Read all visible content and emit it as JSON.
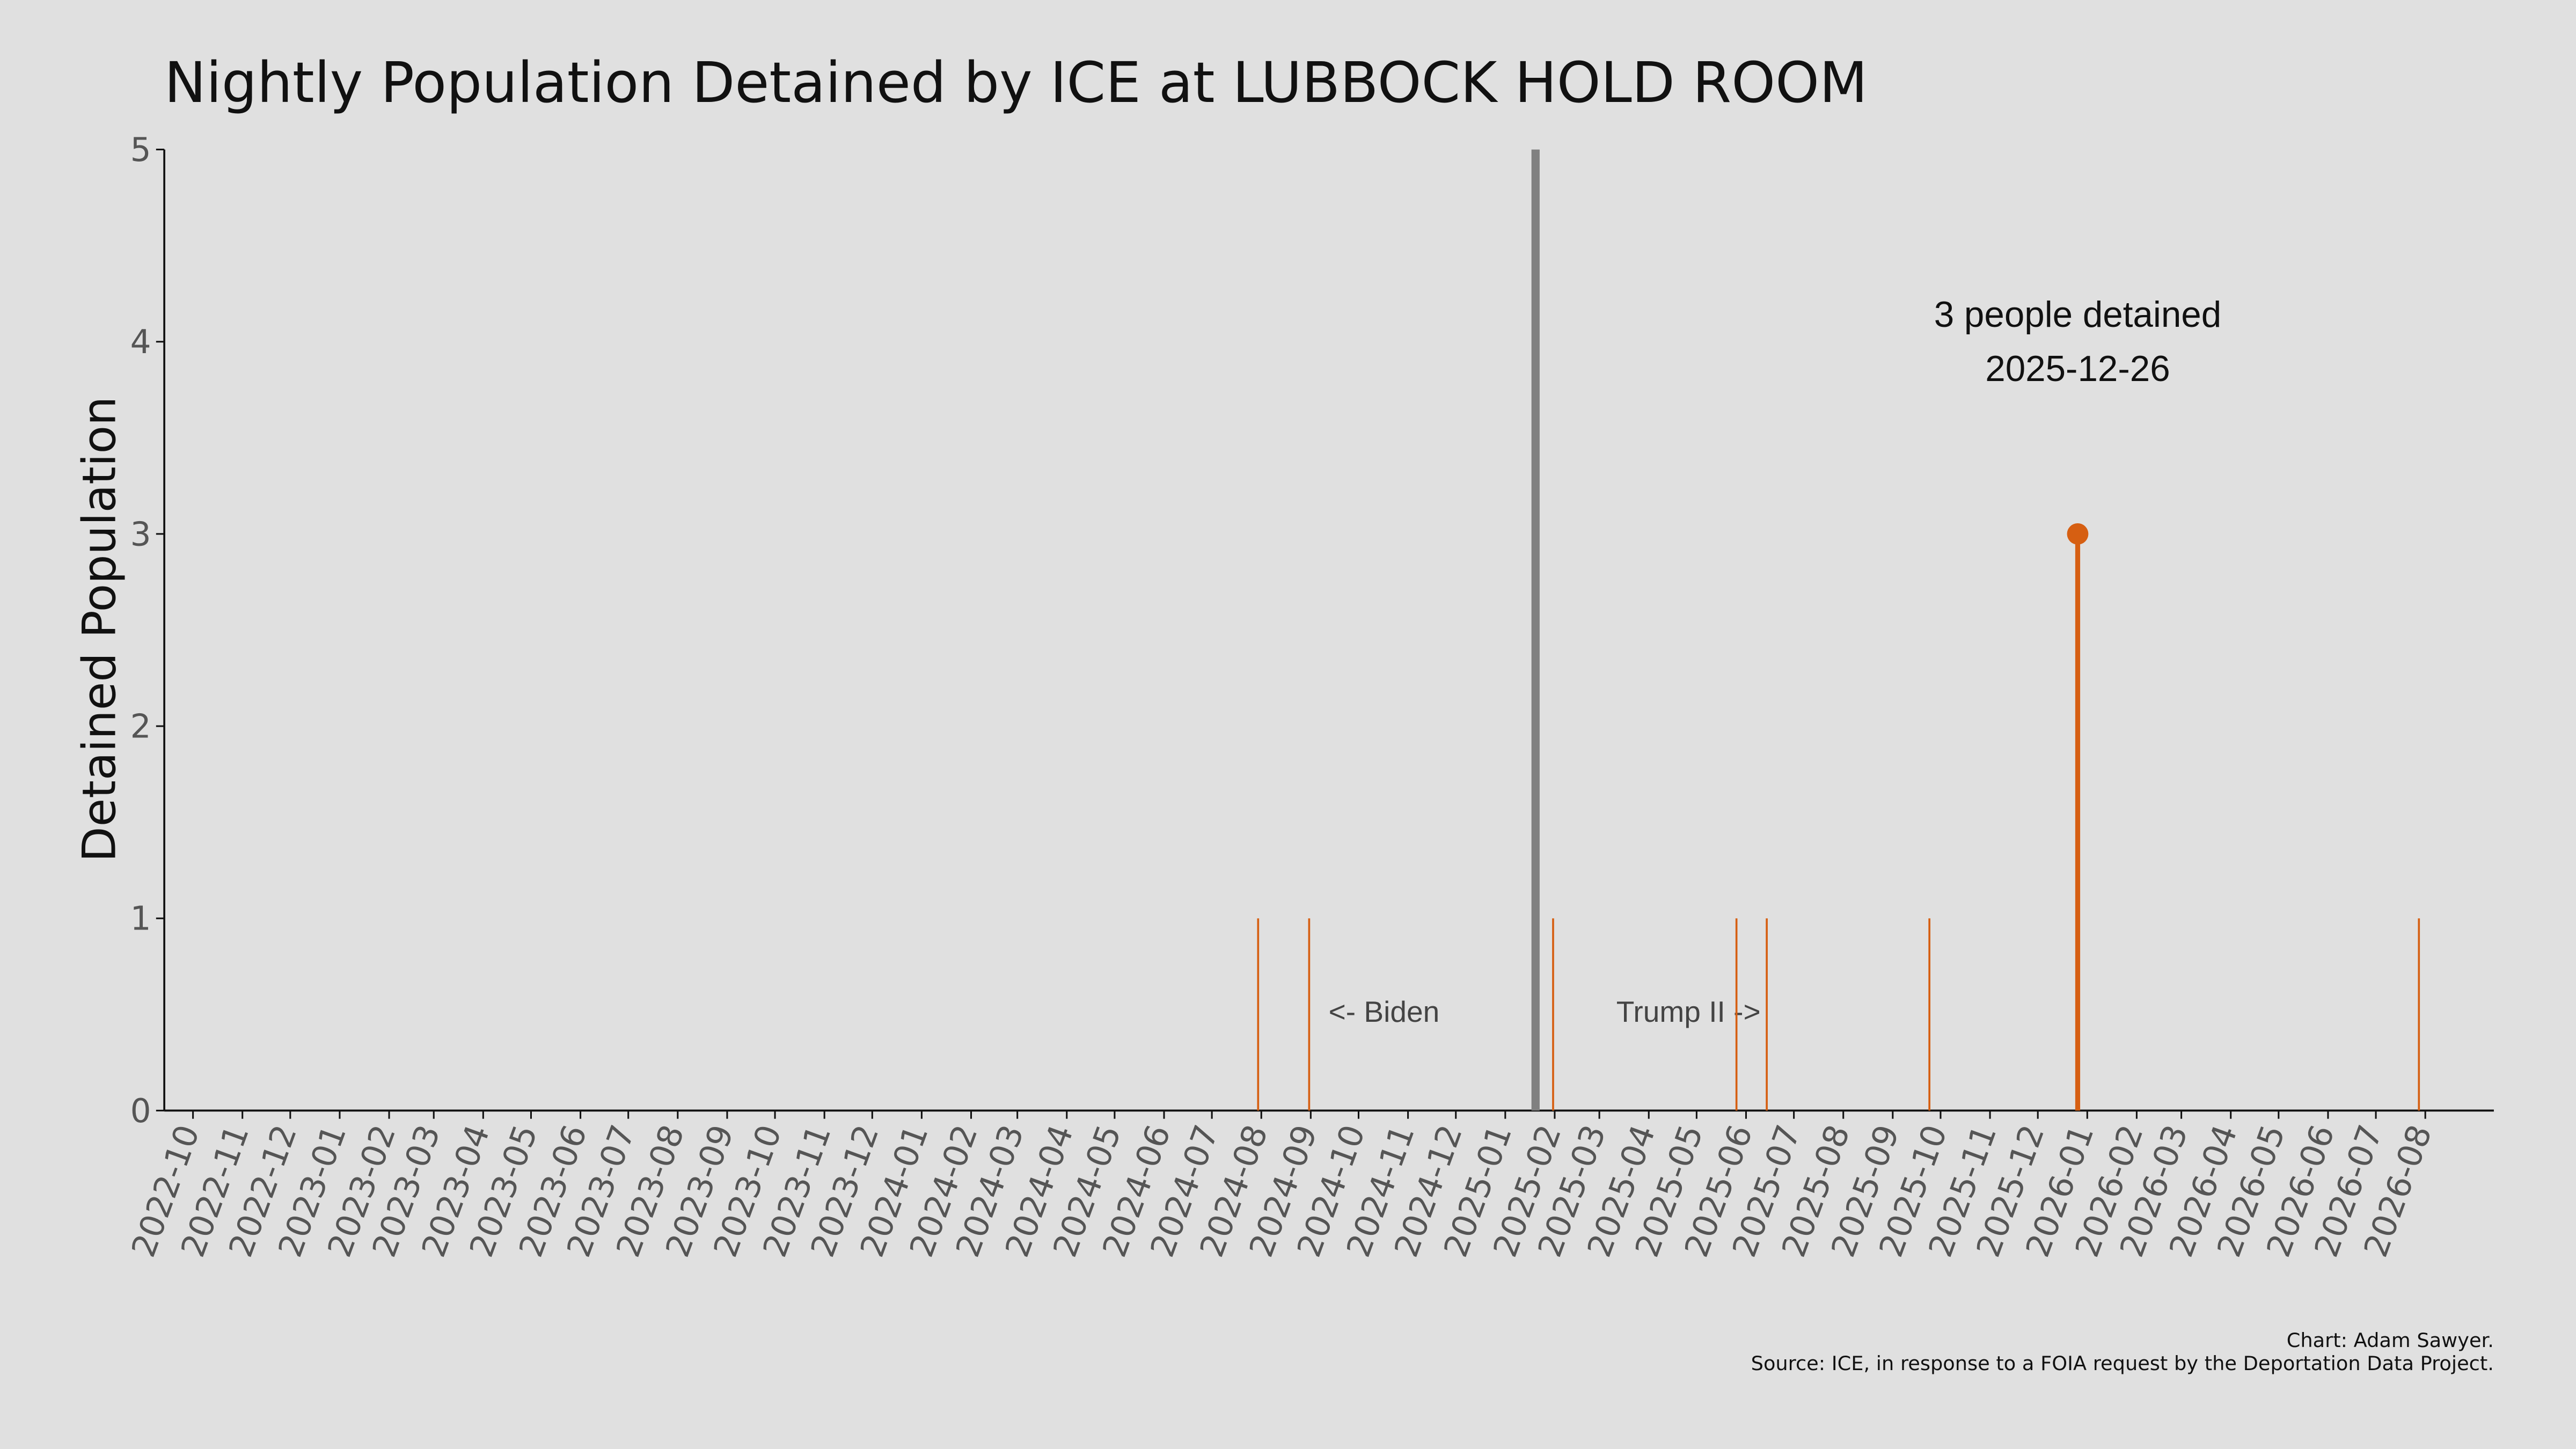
{
  "chart_data": {
    "type": "stem",
    "title": "Nightly Population Detained by ICE at LUBBOCK HOLD ROOM",
    "ylabel": "Detained Population",
    "x": [
      "2024-07-30",
      "2024-08-31",
      "2025-01-31",
      "2025-05-26",
      "2025-06-14",
      "2025-09-24",
      "2025-12-26",
      "2026-07-28"
    ],
    "values": [
      1,
      1,
      1,
      1,
      1,
      1,
      3,
      1
    ],
    "color": "#d65f12",
    "xlim": [
      "2022-09-13",
      "2026-09-13"
    ],
    "xticks": [
      "2022-10",
      "2022-11",
      "2022-12",
      "2023-01",
      "2023-02",
      "2023-03",
      "2023-04",
      "2023-05",
      "2023-06",
      "2023-07",
      "2023-08",
      "2023-09",
      "2023-10",
      "2023-11",
      "2023-12",
      "2024-01",
      "2024-02",
      "2024-03",
      "2024-04",
      "2024-05",
      "2024-06",
      "2024-07",
      "2024-08",
      "2024-09",
      "2024-10",
      "2024-11",
      "2024-12",
      "2025-01",
      "2025-02",
      "2025-03",
      "2025-04",
      "2025-05",
      "2025-06",
      "2025-07",
      "2025-08",
      "2025-09",
      "2025-10",
      "2025-11",
      "2025-12",
      "2026-01",
      "2026-02",
      "2026-03",
      "2026-04",
      "2026-05",
      "2026-06",
      "2026-07",
      "2026-08"
    ],
    "ylim": [
      0,
      5
    ],
    "yticks": [
      0,
      1,
      2,
      3,
      4,
      5
    ],
    "grid": false,
    "vline": {
      "x": "2025-01-20",
      "color": "#808080"
    },
    "annotations": {
      "left": "<- Biden",
      "right": "Trump II ->",
      "peak": [
        "3 people detained",
        "2025-12-26"
      ]
    },
    "credits": [
      "Chart: Adam Sawyer.",
      "Source: ICE, in response to a FOIA request by the Deportation Data Project."
    ]
  }
}
